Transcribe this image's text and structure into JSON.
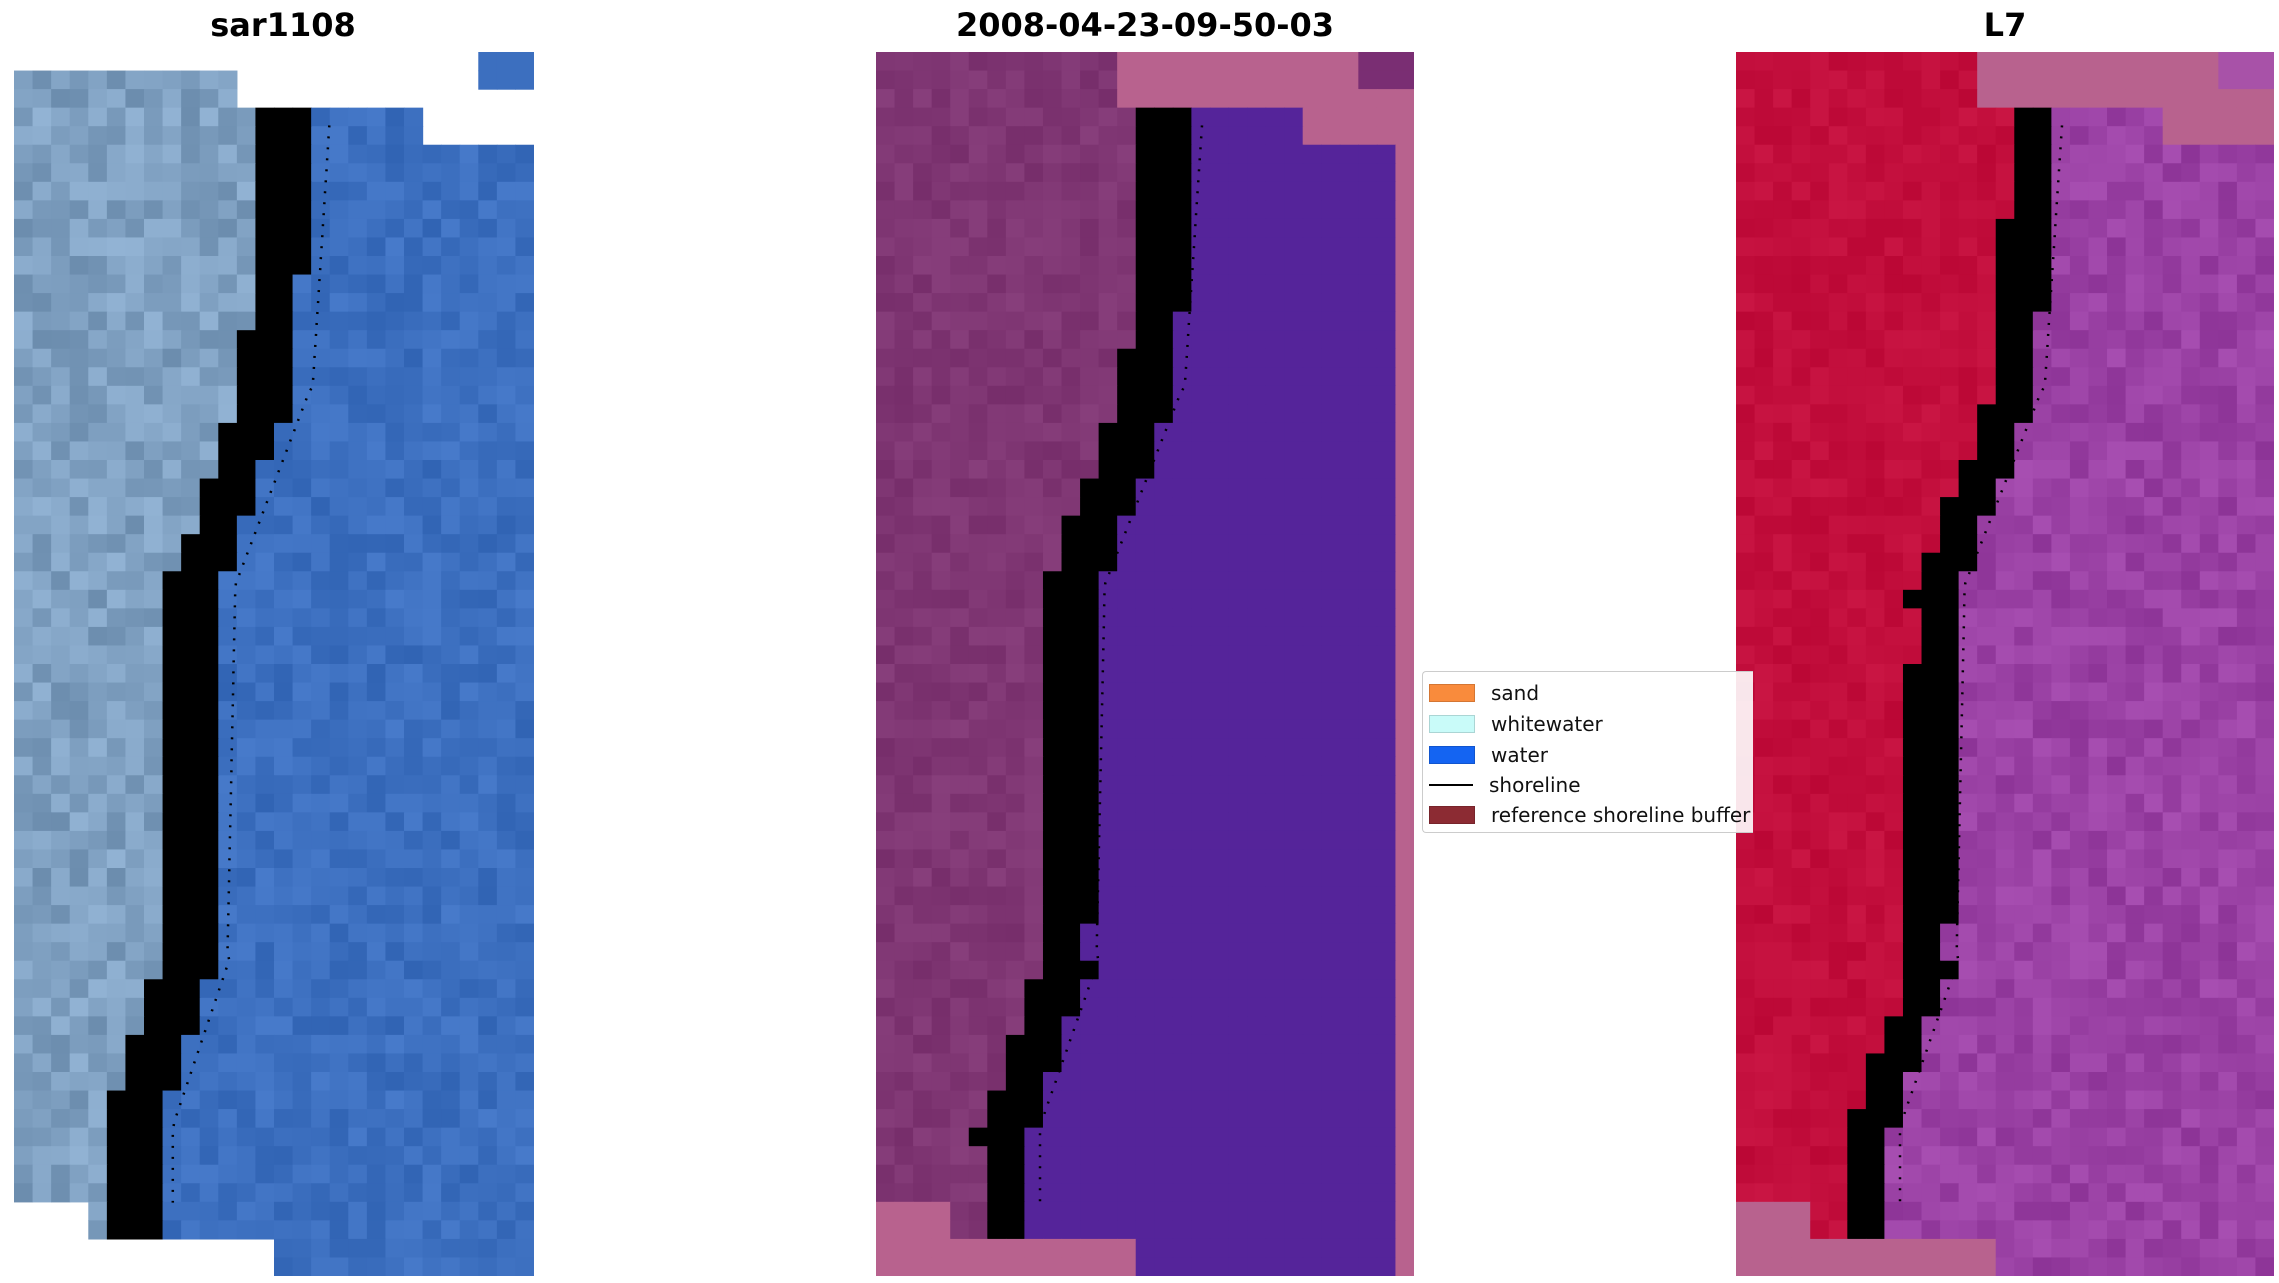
{
  "panels": [
    {
      "title": "sar1108",
      "style": "rgb"
    },
    {
      "title": "2008-04-23-09-50-03",
      "style": "classified"
    },
    {
      "title": "L7",
      "style": "index"
    }
  ],
  "legend": {
    "items": [
      {
        "label": "sand",
        "kind": "swatch",
        "color": "#f98b3c"
      },
      {
        "label": "whitewater",
        "kind": "swatch",
        "color": "#c9fbf9"
      },
      {
        "label": "water",
        "kind": "swatch",
        "color": "#1464f2"
      },
      {
        "label": "shoreline",
        "kind": "line",
        "color": "#000000"
      },
      {
        "label": "reference shoreline buffer",
        "kind": "swatch",
        "color": "#8c2b33"
      }
    ]
  },
  "colors": {
    "nodata_pink": "#b8628e",
    "water_class": "#55249a",
    "land_class": "#7f3673",
    "index_high": "#c20e3c",
    "index_low": "#9a41a4",
    "rgb_water": "#3c6fbf",
    "rgb_land": "#7fa0c1"
  }
}
